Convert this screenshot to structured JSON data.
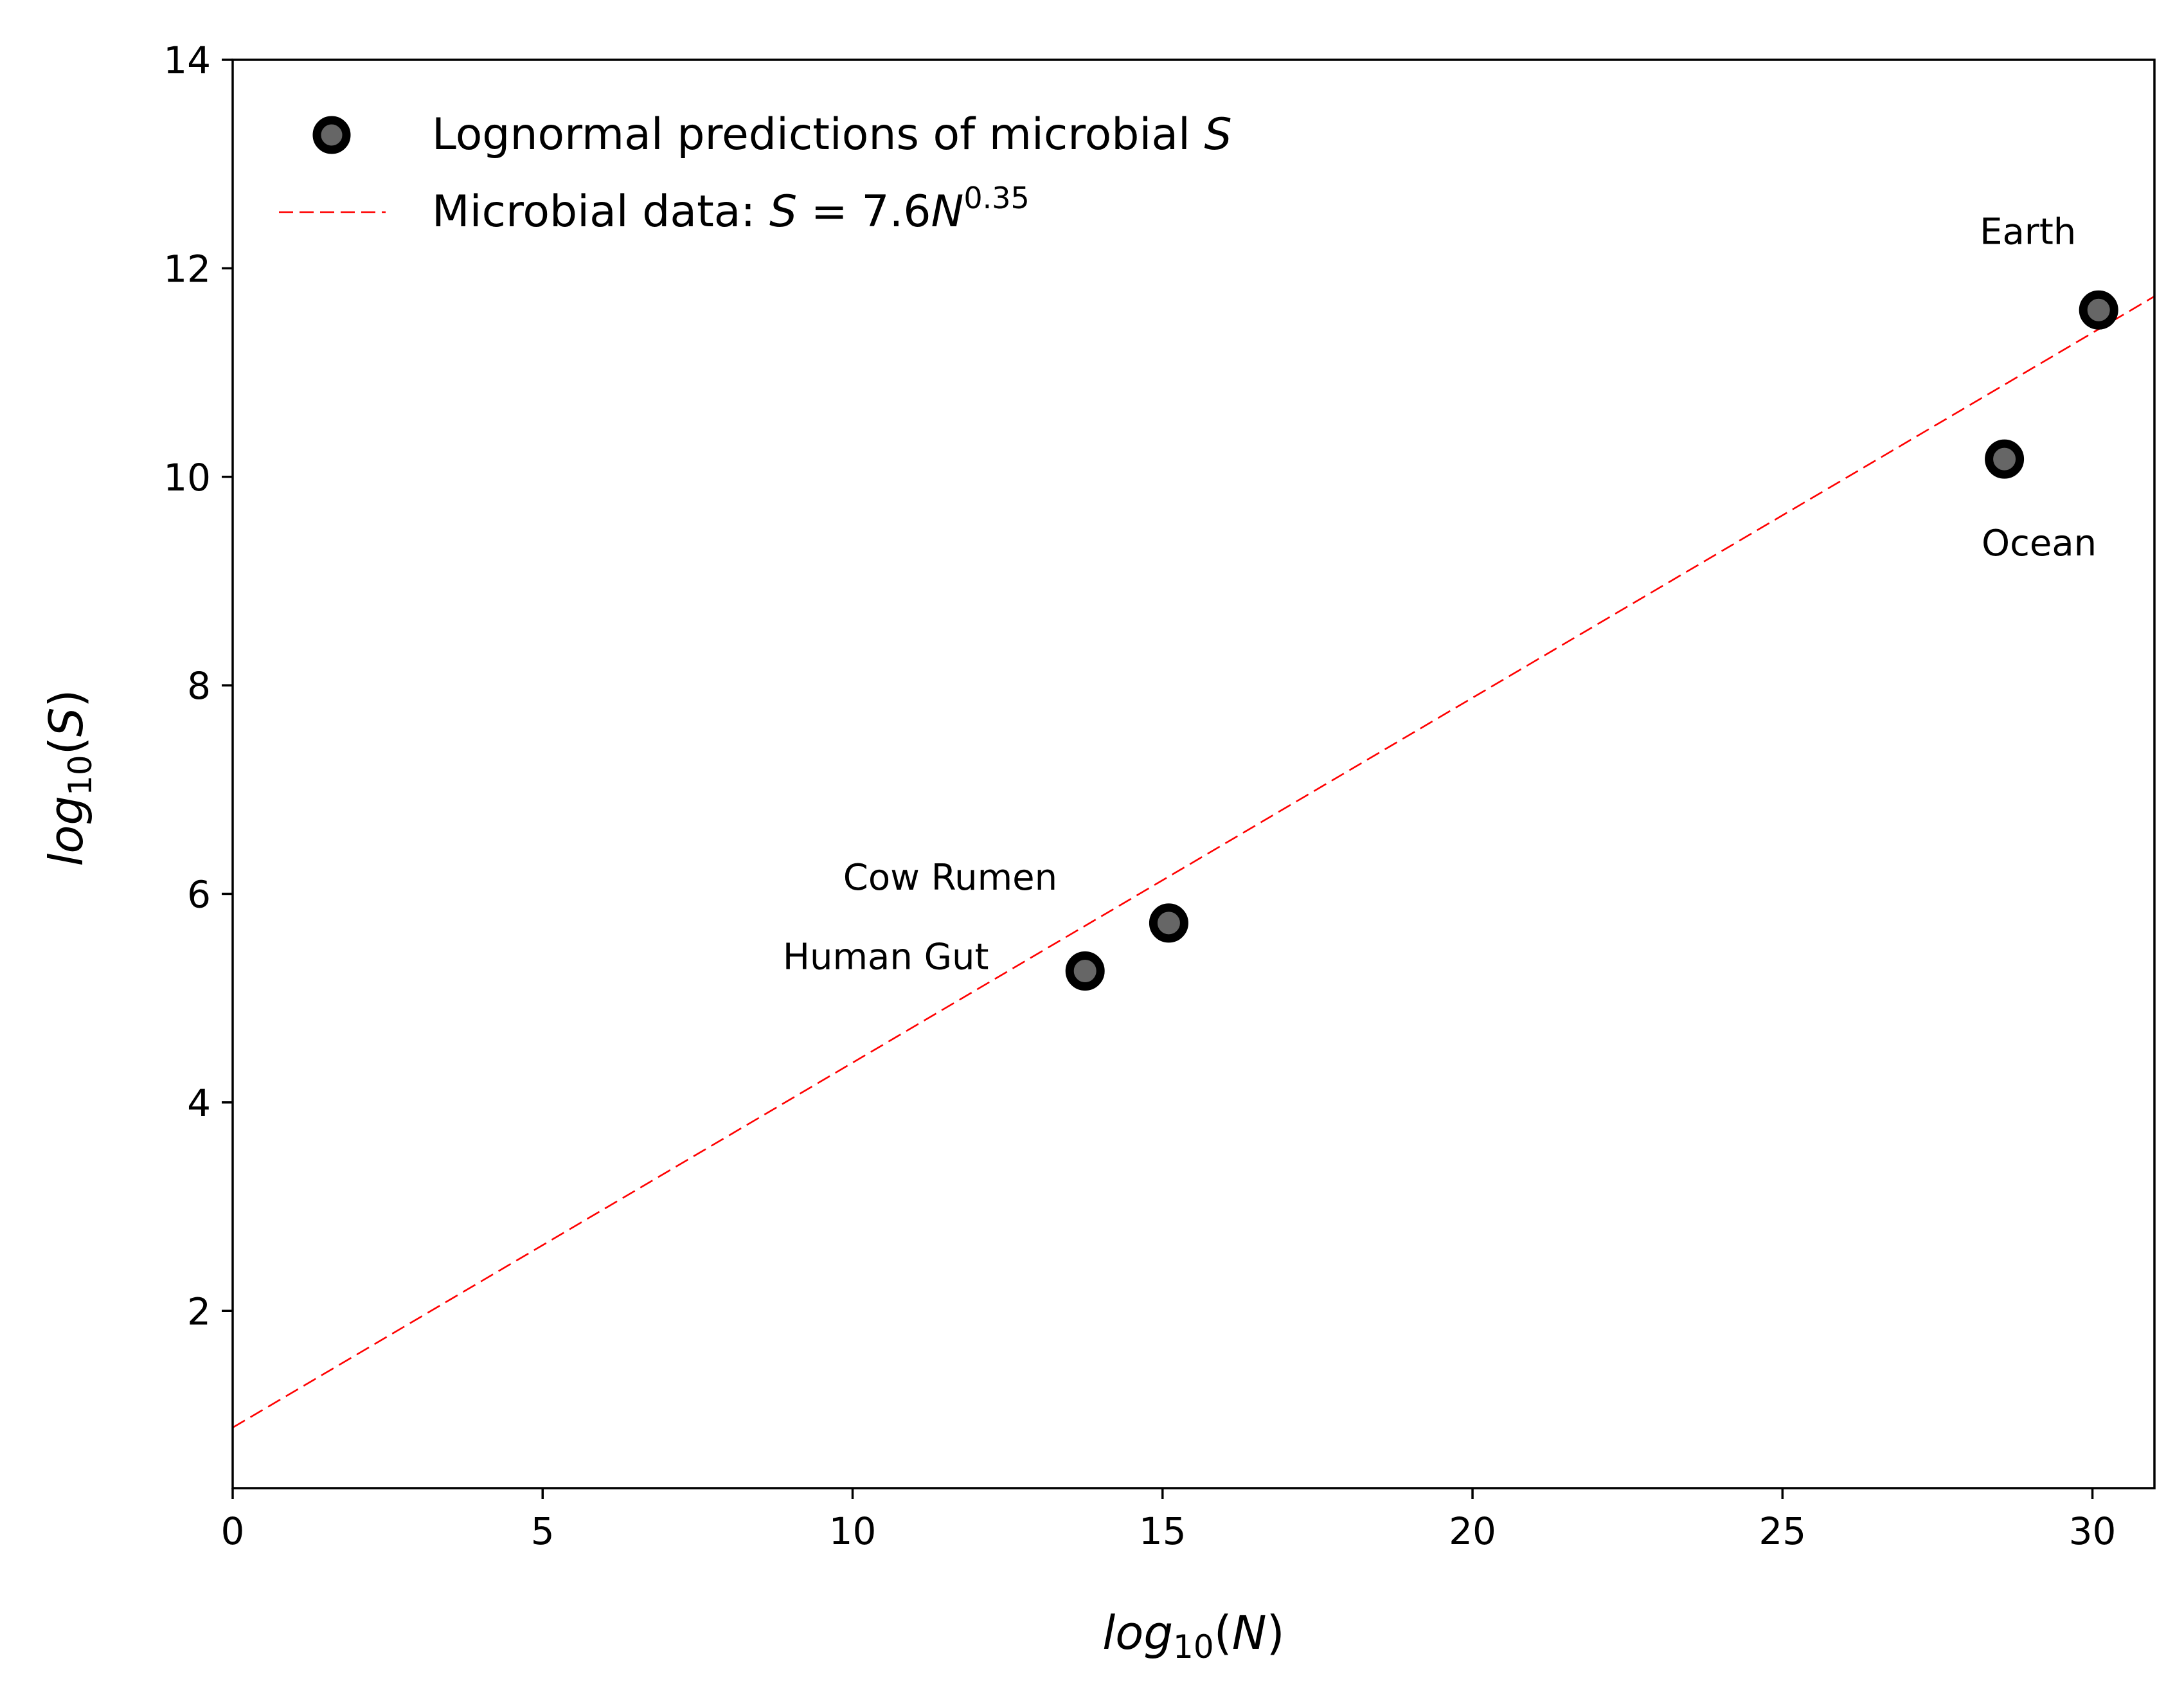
{
  "chart_data": {
    "type": "scatter",
    "xlabel": "log10(N)",
    "ylabel": "log10(S)",
    "xlim": [
      0,
      31
    ],
    "ylim": [
      0.3,
      14
    ],
    "xticks": [
      0,
      5,
      10,
      15,
      20,
      25,
      30
    ],
    "yticks": [
      2,
      4,
      6,
      8,
      10,
      12,
      14
    ],
    "grid": false,
    "legend_location": "upper-left",
    "series": [
      {
        "name": "Lognormal predictions of microbial S",
        "kind": "scatter",
        "face_color": "#666666",
        "edge_color": "#000000",
        "points": [
          {
            "label": "Human Gut",
            "x": 13.75,
            "y": 5.26
          },
          {
            "label": "Cow Rumen",
            "x": 15.1,
            "y": 5.72
          },
          {
            "label": "Ocean",
            "x": 28.58,
            "y": 10.17
          },
          {
            "label": "Earth",
            "x": 30.1,
            "y": 11.6
          }
        ]
      },
      {
        "name": "Microbial data: S = 7.6N^0.35",
        "kind": "line",
        "color": "#ff0000",
        "style": "dashed",
        "intercept": 0.8808,
        "slope": 0.35
      }
    ],
    "legend": {
      "scatter_label": {
        "pre": "Lognormal predictions of microbial ",
        "var": "S"
      },
      "line_label": {
        "pre": "Microbial data: ",
        "var1": "S",
        "mid": " = 7.6",
        "var2": "N",
        "exp": "0.35"
      }
    },
    "annotations": [
      {
        "text": "Earth",
        "anchor": "Earth"
      },
      {
        "text": "Ocean",
        "anchor": "Ocean"
      },
      {
        "text": "Cow Rumen",
        "anchor": "Cow Rumen"
      },
      {
        "text": "Human Gut",
        "anchor": "Human Gut"
      }
    ]
  }
}
